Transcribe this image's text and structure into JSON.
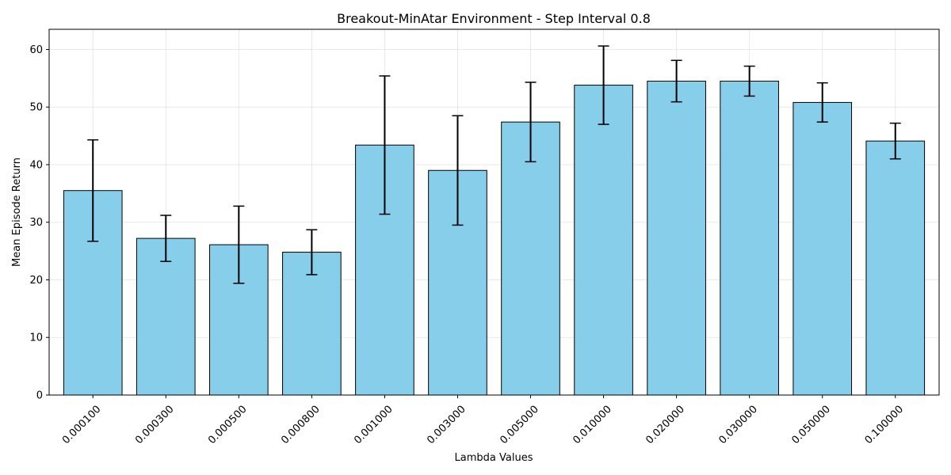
{
  "chart_data": {
    "type": "bar",
    "title": "Breakout-MinAtar Environment - Step Interval 0.8",
    "xlabel": "Lambda Values",
    "ylabel": "Mean Episode Return",
    "ylim": [
      0,
      63.5
    ],
    "yticks": [
      0,
      10,
      20,
      30,
      40,
      50,
      60
    ],
    "grid": true,
    "bar_color": "#87CEEB",
    "edge_color": "#000000",
    "categories": [
      "0.000100",
      "0.000300",
      "0.000500",
      "0.000800",
      "0.001000",
      "0.003000",
      "0.005000",
      "0.010000",
      "0.020000",
      "0.030000",
      "0.050000",
      "0.100000"
    ],
    "values": [
      35.5,
      27.2,
      26.1,
      24.8,
      43.4,
      39.0,
      47.4,
      53.8,
      54.5,
      54.5,
      50.8,
      44.1
    ],
    "errors": [
      8.8,
      4.0,
      6.7,
      3.9,
      12.0,
      9.5,
      6.9,
      6.8,
      3.6,
      2.6,
      3.4,
      3.1
    ]
  }
}
